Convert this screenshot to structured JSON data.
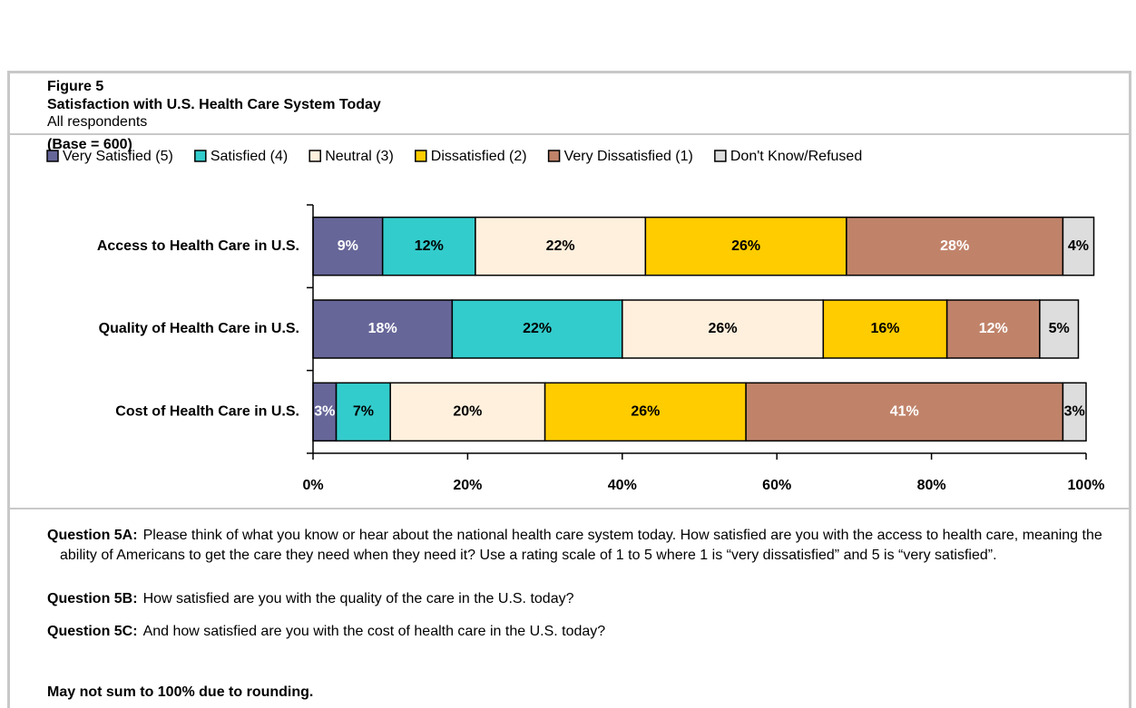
{
  "chart_data": {
    "type": "stacked-bar-horizontal",
    "figure_label": "Figure 5",
    "title": "Satisfaction with U.S. Health Care System Today",
    "subtitle": "All respondents",
    "base_note": "(Base = 600)",
    "categories": [
      "Access to Health Care in U.S.",
      "Quality of Health Care in U.S.",
      "Cost of Health Care in U.S."
    ],
    "series": [
      {
        "name": "Very Satisfied (5)",
        "color": "#666699",
        "label_color": "#ffffff",
        "values": [
          9,
          18,
          3
        ],
        "value_labels": [
          "9%",
          "18%",
          "3%"
        ]
      },
      {
        "name": "Satisfied (4)",
        "color": "#33cccc",
        "label_color": "#000000",
        "values": [
          12,
          22,
          7
        ],
        "value_labels": [
          "12%",
          "22%",
          "7%"
        ]
      },
      {
        "name": "Neutral (3)",
        "color": "#fff0dd",
        "label_color": "#000000",
        "values": [
          22,
          26,
          20
        ],
        "value_labels": [
          "22%",
          "26%",
          "20%"
        ]
      },
      {
        "name": "Dissatisfied (2)",
        "color": "#ffcc00",
        "label_color": "#000000",
        "values": [
          26,
          16,
          26
        ],
        "value_labels": [
          "26%",
          "16%",
          "26%"
        ]
      },
      {
        "name": "Very Dissatisfied (1)",
        "color": "#c0836a",
        "label_color": "#ffffff",
        "values": [
          28,
          12,
          41
        ],
        "value_labels": [
          "28%",
          "12%",
          "41%"
        ]
      },
      {
        "name": "Don't Know/Refused",
        "color": "#dddddd",
        "label_color": "#000000",
        "values": [
          4,
          5,
          3
        ],
        "value_labels": [
          "4%",
          "5%",
          "3%"
        ]
      }
    ],
    "xlim": [
      0,
      100
    ],
    "xticks": [
      {
        "value": 0,
        "label": "0%"
      },
      {
        "value": 20,
        "label": "20%"
      },
      {
        "value": 40,
        "label": "40%"
      },
      {
        "value": 60,
        "label": "60%"
      },
      {
        "value": 80,
        "label": "80%"
      },
      {
        "value": 100,
        "label": "100%"
      }
    ],
    "legend": "top"
  },
  "questions": [
    {
      "label": "Question 5A:",
      "text": "Please think of what you know or hear about the national health care system today.  How satisfied are you with the access to health care, meaning the ability of Americans to get the care they need when they need it?  Use a rating scale of 1 to 5 where 1 is “very dissatisfied” and 5 is “very satisfied”."
    },
    {
      "label": "Question 5B:",
      "text": "How satisfied are you with the quality of the care in the U.S.  today?"
    },
    {
      "label": "Question 5C:",
      "text": "And how satisfied are you with the cost of health care in the U.S. today?"
    }
  ],
  "footnote": "May not sum to 100% due to rounding."
}
